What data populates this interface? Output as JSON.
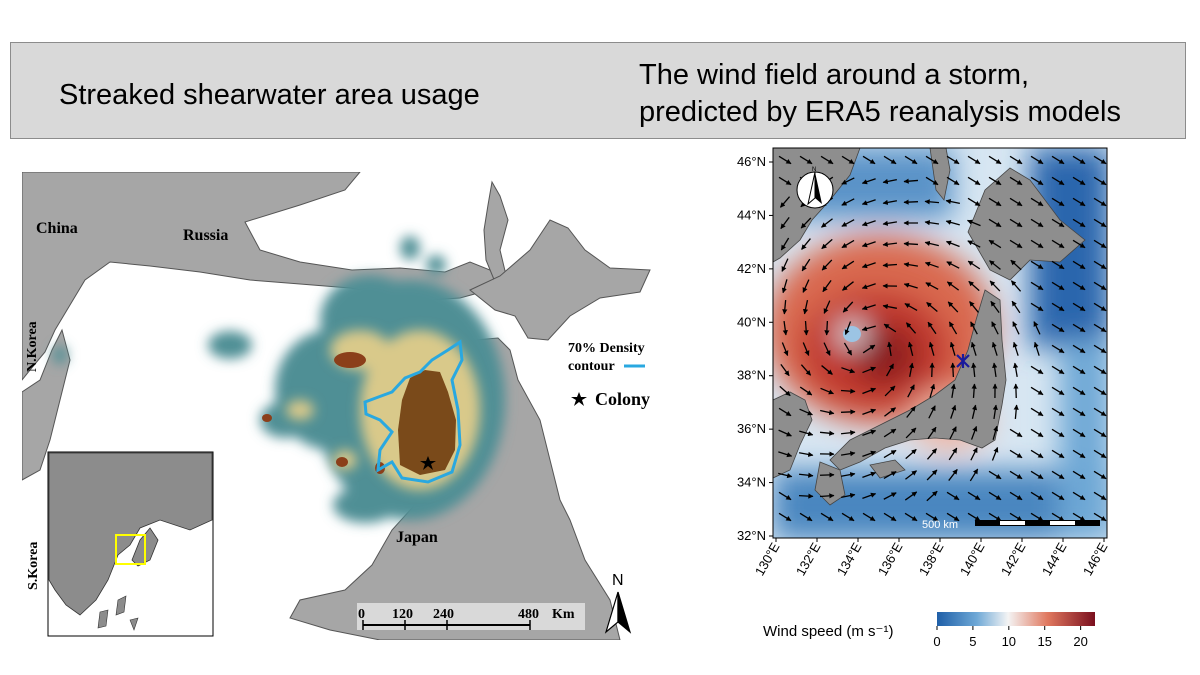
{
  "banner": {
    "left_title": "Streaked shearwater area usage",
    "right_title_line1": "The wind field around a storm,",
    "right_title_line2": "predicted by ERA5 reanalysis models"
  },
  "left_map": {
    "labels": {
      "china": "China",
      "russia": "Russia",
      "nkorea": "N.Korea",
      "skorea": "S.Korea",
      "japan": "Japan"
    },
    "legend": {
      "density_line1": "70% Density",
      "density_line2": "contour",
      "colony": "Colony",
      "contour_color": "#29a8e0"
    },
    "scale_bar": {
      "ticks": [
        "0",
        "120",
        "240",
        "480"
      ],
      "unit": "Km"
    },
    "north": "N",
    "inset_box_color": "#ffff00"
  },
  "right_map": {
    "lat_labels": [
      "46°N",
      "44°N",
      "42°N",
      "40°N",
      "38°N",
      "36°N",
      "34°N",
      "32°N"
    ],
    "lon_labels": [
      "130°E",
      "132°E",
      "134°E",
      "136°E",
      "138°E",
      "140°E",
      "142°E",
      "144°E",
      "146°E"
    ],
    "scale_text": "500 km",
    "compass_label": "N",
    "colorbar": {
      "title": "Wind speed (m s⁻¹)",
      "ticks": [
        "0",
        "5",
        "10",
        "15",
        "20"
      ],
      "range": [
        0,
        22
      ],
      "low_color": "#1f5fa8",
      "mid_color": "#f4f4f4",
      "high_color": "#8b1a1a"
    }
  }
}
